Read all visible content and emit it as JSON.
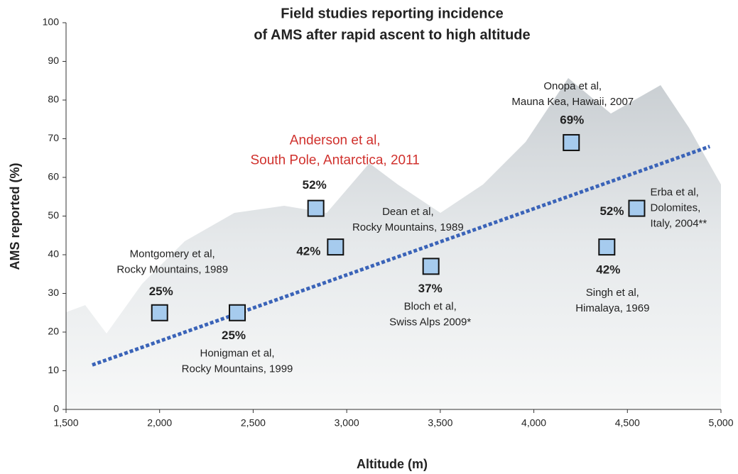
{
  "chart_data": {
    "type": "scatter",
    "title": [
      "Field studies reporting incidence",
      "of AMS after rapid ascent to high altitude"
    ],
    "x_label": "Altitude (m)",
    "y_label": "AMS reported (%)",
    "x": [
      2000,
      2415,
      2835,
      2940,
      3450,
      4200,
      4390,
      4550
    ],
    "values": [
      25,
      25,
      52,
      42,
      37,
      69,
      42,
      52
    ],
    "value_labels": [
      "25%",
      "25%",
      "52%",
      "42%",
      "37%",
      "69%",
      "42%",
      "52%"
    ],
    "point_labels": [
      [
        "Montgomery et al,",
        "Rocky Mountains, 1989"
      ],
      [
        "Honigman et al,",
        "Rocky Mountains, 1999"
      ],
      [
        "Anderson et al,",
        "South Pole, Antarctica, 2011"
      ],
      [
        "Dean et al,",
        "Rocky Mountains, 1989"
      ],
      [
        "Bloch et al,",
        "Swiss Alps 2009*"
      ],
      [
        "Onopa et al,",
        "Mauna Kea, Hawaii, 2007"
      ],
      [
        "Singh et al,",
        "Himalaya, 1969"
      ],
      [
        "Erba et al,",
        "Dolomites,",
        "Italy, 2004**"
      ]
    ],
    "highlight_color": "#d0312d",
    "color": "#a6cbee",
    "trendline": {
      "x": [
        1640,
        4940
      ],
      "y": [
        11.5,
        68
      ],
      "color": "#3a63b8"
    },
    "xlim": [
      1500,
      5000
    ],
    "ylim": [
      0,
      100
    ],
    "xticks": [
      {
        "value": 1500,
        "label": "1,500"
      },
      {
        "value": 2000,
        "label": "2,000"
      },
      {
        "value": 2500,
        "label": "2,500"
      },
      {
        "value": 3000,
        "label": "3,000"
      },
      {
        "value": 3500,
        "label": "3,500"
      },
      {
        "value": 4000,
        "label": "4,000"
      },
      {
        "value": 4500,
        "label": "4,500"
      },
      {
        "value": 5000,
        "label": "5,000"
      }
    ],
    "yticks": [
      0,
      10,
      20,
      30,
      40,
      50,
      60,
      70,
      80,
      90,
      100
    ]
  }
}
